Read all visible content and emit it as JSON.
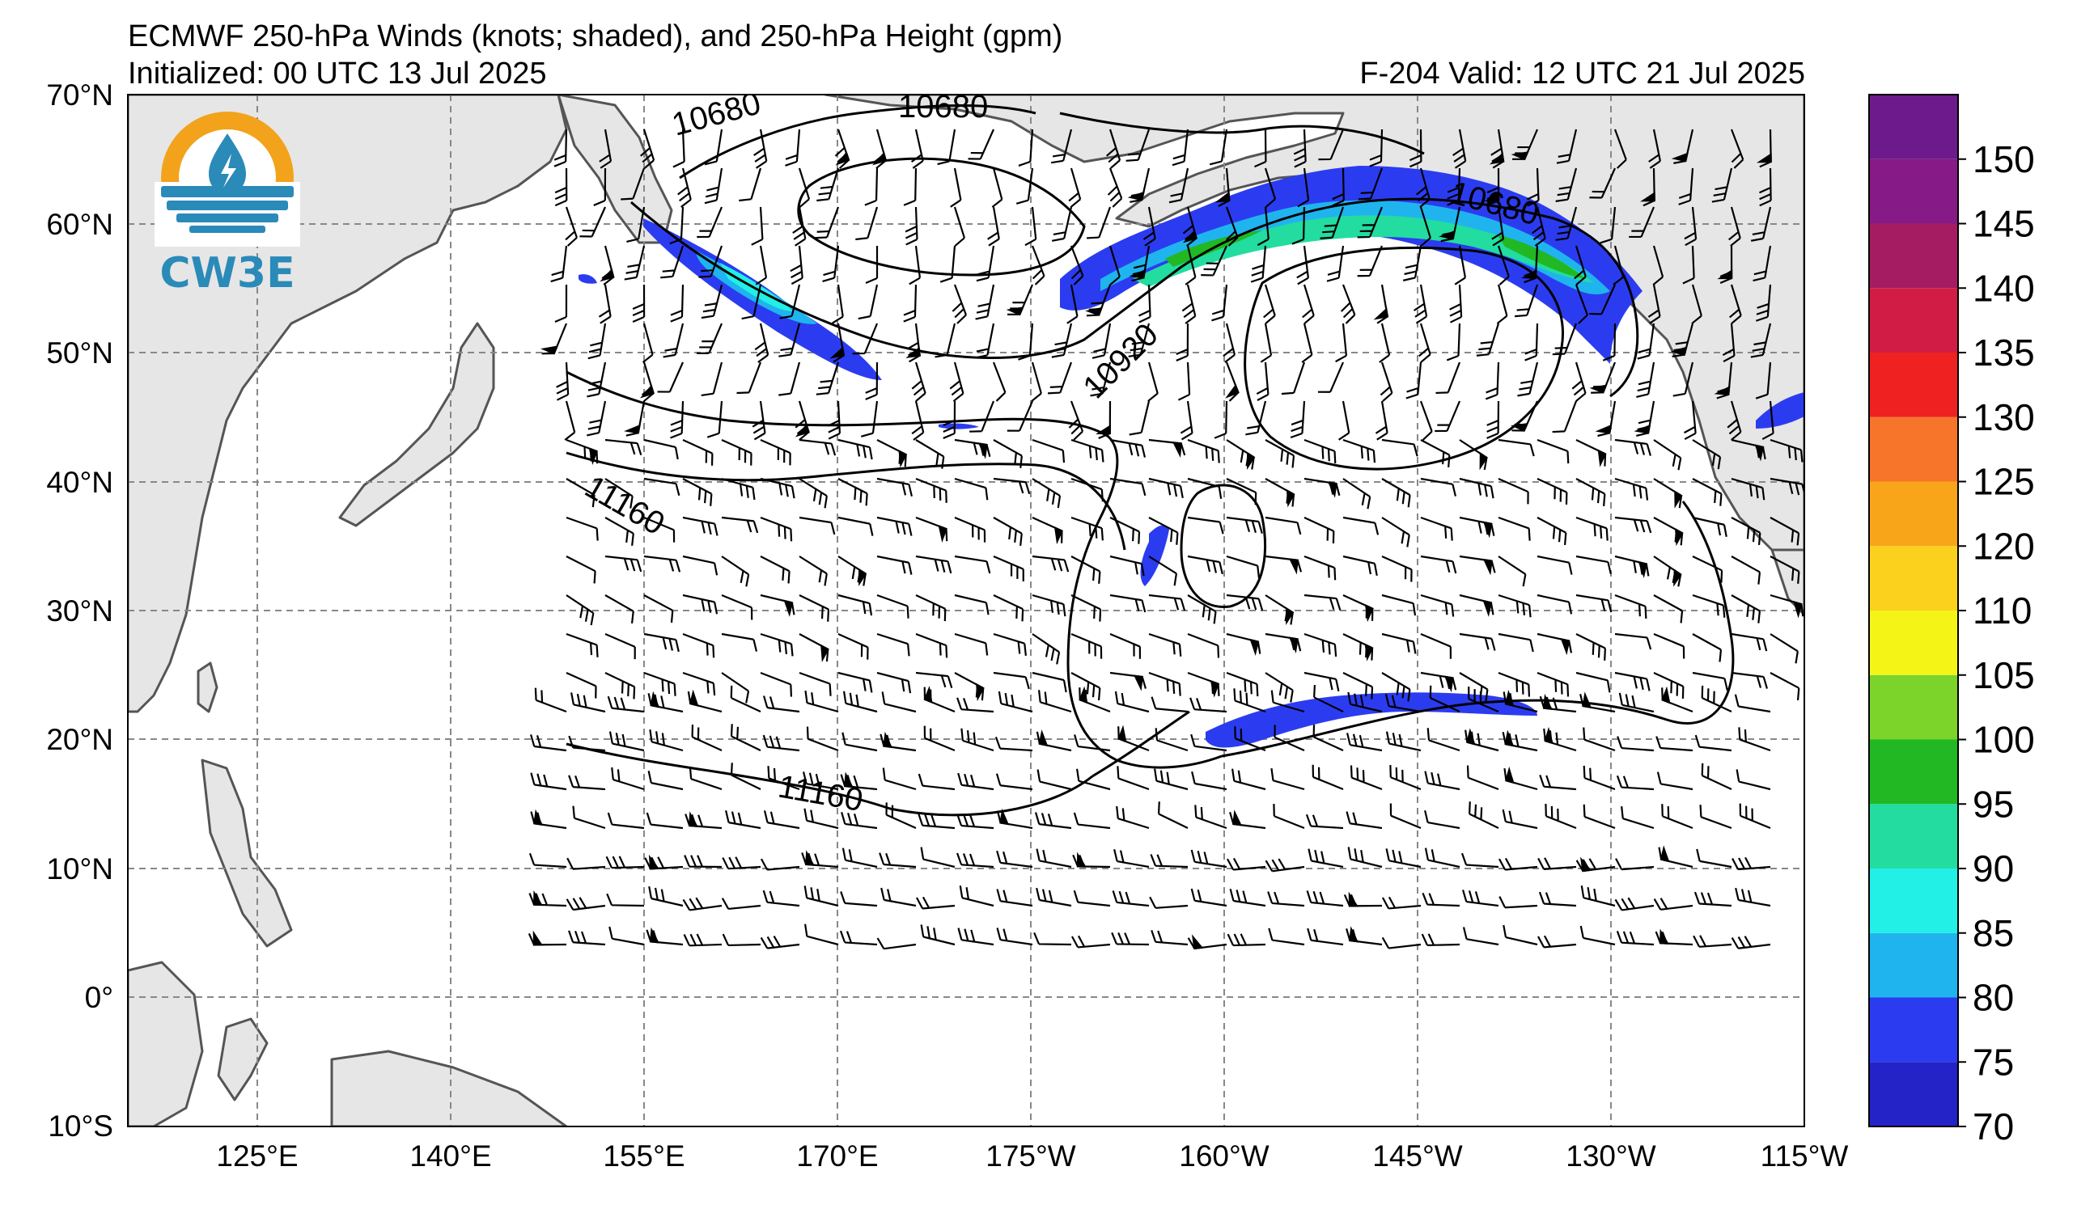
{
  "title": {
    "line1": "ECMWF 250-hPa Winds (knots; shaded), and 250-hPa Height (gpm)",
    "init": "Initialized: 00 UTC 13 Jul 2025",
    "valid": "F-204  Valid: 12 UTC 21 Jul 2025"
  },
  "logo": {
    "text": "CW3E",
    "colors": {
      "sun": "#f2a31b",
      "sea": "#2a8ab8"
    }
  },
  "axes": {
    "lat_labels": [
      "70°N",
      "60°N",
      "50°N",
      "40°N",
      "30°N",
      "20°N",
      "10°N",
      "0°",
      "10°S"
    ],
    "lon_labels": [
      "125°E",
      "140°E",
      "155°E",
      "170°E",
      "175°W",
      "160°W",
      "145°W",
      "130°W",
      "115°W"
    ]
  },
  "contour_labels": [
    "10680",
    "10680",
    "10680",
    "10920",
    "11160",
    "11160"
  ],
  "colorbar": {
    "labels": [
      "70",
      "75",
      "80",
      "85",
      "90",
      "95",
      "100",
      "105",
      "110",
      "120",
      "125",
      "130",
      "135",
      "140",
      "145",
      "150"
    ],
    "colors": [
      "#2323c8",
      "#2b3cf0",
      "#1fb4ee",
      "#22efe6",
      "#22dca0",
      "#21b823",
      "#7cd32a",
      "#f4f516",
      "#fcd11d",
      "#f9a51a",
      "#f6752a",
      "#ef2121",
      "#d11d45",
      "#a61c62",
      "#861a86",
      "#6d1a8c"
    ]
  },
  "colors": {
    "land": "#e6e6e6",
    "coast": "#555555",
    "grid": "#888888"
  }
}
